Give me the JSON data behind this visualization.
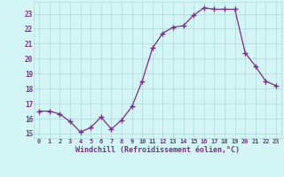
{
  "x": [
    0,
    1,
    2,
    3,
    4,
    5,
    6,
    7,
    8,
    9,
    10,
    11,
    12,
    13,
    14,
    15,
    16,
    17,
    18,
    19,
    20,
    21,
    22,
    23
  ],
  "y": [
    16.5,
    16.5,
    16.3,
    15.8,
    15.1,
    15.4,
    16.1,
    15.3,
    15.9,
    16.8,
    18.5,
    20.7,
    21.7,
    22.1,
    22.2,
    22.9,
    23.4,
    23.3,
    23.3,
    23.3,
    20.4,
    19.5,
    18.5,
    18.2
  ],
  "line_color": "#7b2d8b",
  "marker": "+",
  "marker_size": 4,
  "marker_lw": 1.0,
  "bg_color": "#d4f5f5",
  "grid_color": "#b0d8d8",
  "tick_color": "#7b2d8b",
  "label_color": "#7b2d8b",
  "xlabel": "Windchill (Refroidissement éolien,°C)",
  "ylim": [
    14.7,
    23.8
  ],
  "xlim": [
    -0.5,
    23.5
  ],
  "yticks": [
    15,
    16,
    17,
    18,
    19,
    20,
    21,
    22,
    23
  ],
  "xticks": [
    0,
    1,
    2,
    3,
    4,
    5,
    6,
    7,
    8,
    9,
    10,
    11,
    12,
    13,
    14,
    15,
    16,
    17,
    18,
    19,
    20,
    21,
    22,
    23
  ],
  "xlabel_fontsize": 6.0,
  "xtick_fontsize": 5.0,
  "ytick_fontsize": 5.5,
  "line_width": 0.9
}
